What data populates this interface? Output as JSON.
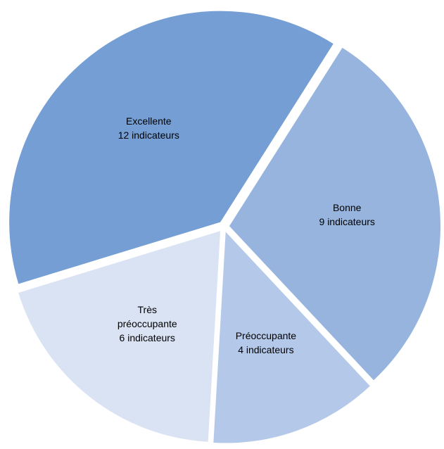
{
  "chart_data": {
    "type": "pie",
    "categories": [
      "Excellente",
      "Bonne",
      "Préoccupante",
      "Très préoccupante"
    ],
    "values": [
      12,
      9,
      4,
      6
    ],
    "value_labels": [
      "12 indicateurs",
      "9 indicateurs",
      "4 indicateurs",
      "6 indicateurs"
    ],
    "colors": [
      "#759fd4",
      "#96b4de",
      "#b4c9e9",
      "#dae3f4"
    ]
  }
}
